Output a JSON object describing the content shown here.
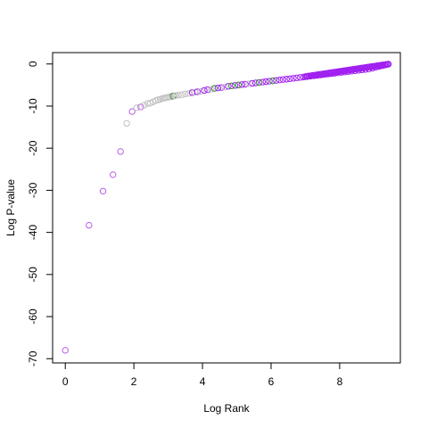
{
  "chart_data": {
    "type": "scatter",
    "title": "",
    "xlabel": "Log Rank",
    "ylabel": "Log P-value",
    "xlim": [
      -0.37,
      9.77
    ],
    "ylim": [
      -71.0,
      2.7
    ],
    "grid": false,
    "legend": "none",
    "x_ticks": [
      0,
      2,
      4,
      6,
      8
    ],
    "x_tick_labels": [
      "0",
      "2",
      "4",
      "6",
      "8"
    ],
    "y_ticks": [
      0,
      -10,
      -20,
      -30,
      -40,
      -50,
      -60,
      -70
    ],
    "y_tick_labels": [
      "0",
      "-10",
      "-20",
      "-30",
      "-40",
      "-50",
      "-60",
      "-70"
    ],
    "marker": "open-circle",
    "colors": {
      "purple": "#a020f0",
      "purple_light": "#b95ee8",
      "gray": "#c0c0c0",
      "green": "#2e8b2e",
      "axis": "#000000"
    },
    "points": [
      {
        "x": 0.0,
        "y": -68.0,
        "color": "purple_light"
      },
      {
        "x": 0.69,
        "y": -38.3,
        "color": "purple_light"
      },
      {
        "x": 1.1,
        "y": -30.2,
        "color": "purple_light"
      },
      {
        "x": 1.39,
        "y": -26.3,
        "color": "purple_light"
      },
      {
        "x": 1.61,
        "y": -20.8,
        "color": "purple_light"
      },
      {
        "x": 1.79,
        "y": -14.1,
        "color": "gray"
      },
      {
        "x": 1.95,
        "y": -11.3,
        "color": "purple_light"
      },
      {
        "x": 2.08,
        "y": -10.4,
        "color": "gray"
      },
      {
        "x": 2.2,
        "y": -10.2,
        "color": "purple_light"
      },
      {
        "x": 2.3,
        "y": -9.8,
        "color": "gray"
      },
      {
        "x": 2.4,
        "y": -9.4,
        "color": "gray"
      },
      {
        "x": 2.48,
        "y": -9.3,
        "color": "gray"
      },
      {
        "x": 2.56,
        "y": -9.0,
        "color": "gray"
      },
      {
        "x": 2.64,
        "y": -8.7,
        "color": "gray"
      },
      {
        "x": 2.71,
        "y": -8.5,
        "color": "gray"
      },
      {
        "x": 2.77,
        "y": -8.4,
        "color": "gray"
      },
      {
        "x": 2.83,
        "y": -8.2,
        "color": "gray"
      },
      {
        "x": 2.89,
        "y": -8.1,
        "color": "gray"
      },
      {
        "x": 2.94,
        "y": -8.0,
        "color": "gray"
      },
      {
        "x": 3.0,
        "y": -7.9,
        "color": "gray"
      },
      {
        "x": 3.04,
        "y": -7.8,
        "color": "gray"
      },
      {
        "x": 3.09,
        "y": -7.8,
        "color": "gray"
      },
      {
        "x": 3.14,
        "y": -7.6,
        "color": "green"
      },
      {
        "x": 3.18,
        "y": -7.6,
        "color": "gray"
      },
      {
        "x": 3.22,
        "y": -7.5,
        "color": "gray"
      },
      {
        "x": 3.3,
        "y": -7.4,
        "color": "gray"
      },
      {
        "x": 3.4,
        "y": -7.3,
        "color": "gray"
      },
      {
        "x": 3.5,
        "y": -7.1,
        "color": "gray"
      },
      {
        "x": 3.6,
        "y": -7.0,
        "color": "gray"
      },
      {
        "x": 3.7,
        "y": -6.8,
        "color": "purple"
      },
      {
        "x": 3.78,
        "y": -6.7,
        "color": "gray"
      },
      {
        "x": 3.85,
        "y": -6.6,
        "color": "purple"
      },
      {
        "x": 3.95,
        "y": -6.5,
        "color": "gray"
      },
      {
        "x": 4.05,
        "y": -6.3,
        "color": "purple"
      },
      {
        "x": 4.15,
        "y": -6.1,
        "color": "purple"
      },
      {
        "x": 4.25,
        "y": -6.0,
        "color": "gray"
      },
      {
        "x": 4.35,
        "y": -5.8,
        "color": "green"
      },
      {
        "x": 4.45,
        "y": -5.7,
        "color": "purple"
      },
      {
        "x": 4.55,
        "y": -5.6,
        "color": "purple"
      },
      {
        "x": 4.65,
        "y": -5.5,
        "color": "gray"
      },
      {
        "x": 4.75,
        "y": -5.3,
        "color": "purple"
      },
      {
        "x": 4.85,
        "y": -5.2,
        "color": "green"
      },
      {
        "x": 4.95,
        "y": -5.1,
        "color": "purple"
      },
      {
        "x": 5.05,
        "y": -5.0,
        "color": "green"
      },
      {
        "x": 5.15,
        "y": -4.9,
        "color": "purple"
      },
      {
        "x": 5.25,
        "y": -4.8,
        "color": "purple"
      },
      {
        "x": 5.35,
        "y": -4.7,
        "color": "gray"
      },
      {
        "x": 5.45,
        "y": -4.6,
        "color": "purple"
      },
      {
        "x": 5.55,
        "y": -4.5,
        "color": "purple"
      },
      {
        "x": 5.65,
        "y": -4.4,
        "color": "green"
      },
      {
        "x": 5.75,
        "y": -4.3,
        "color": "purple"
      },
      {
        "x": 5.85,
        "y": -4.2,
        "color": "purple"
      },
      {
        "x": 5.95,
        "y": -4.1,
        "color": "purple"
      },
      {
        "x": 6.05,
        "y": -4.0,
        "color": "green"
      },
      {
        "x": 6.15,
        "y": -3.9,
        "color": "purple"
      },
      {
        "x": 6.25,
        "y": -3.8,
        "color": "purple"
      },
      {
        "x": 6.35,
        "y": -3.7,
        "color": "purple"
      },
      {
        "x": 6.45,
        "y": -3.6,
        "color": "purple"
      },
      {
        "x": 6.55,
        "y": -3.5,
        "color": "purple"
      },
      {
        "x": 6.65,
        "y": -3.4,
        "color": "purple"
      },
      {
        "x": 6.75,
        "y": -3.3,
        "color": "purple"
      },
      {
        "x": 6.85,
        "y": -3.2,
        "color": "purple"
      },
      {
        "x": 6.95,
        "y": -3.1,
        "color": "purple"
      },
      {
        "x": 7.05,
        "y": -3.0,
        "color": "purple"
      },
      {
        "x": 7.15,
        "y": -2.9,
        "color": "purple"
      },
      {
        "x": 7.25,
        "y": -2.8,
        "color": "purple"
      },
      {
        "x": 7.35,
        "y": -2.7,
        "color": "purple"
      },
      {
        "x": 7.45,
        "y": -2.6,
        "color": "purple"
      },
      {
        "x": 7.55,
        "y": -2.5,
        "color": "purple"
      },
      {
        "x": 7.65,
        "y": -2.4,
        "color": "purple"
      },
      {
        "x": 7.75,
        "y": -2.3,
        "color": "purple"
      },
      {
        "x": 7.85,
        "y": -2.2,
        "color": "purple"
      },
      {
        "x": 7.95,
        "y": -2.1,
        "color": "purple"
      },
      {
        "x": 8.05,
        "y": -2.0,
        "color": "purple"
      },
      {
        "x": 8.15,
        "y": -1.9,
        "color": "purple"
      },
      {
        "x": 8.25,
        "y": -1.8,
        "color": "purple"
      },
      {
        "x": 8.35,
        "y": -1.7,
        "color": "purple"
      },
      {
        "x": 8.45,
        "y": -1.6,
        "color": "purple"
      },
      {
        "x": 8.55,
        "y": -1.5,
        "color": "purple"
      },
      {
        "x": 8.65,
        "y": -1.4,
        "color": "purple"
      },
      {
        "x": 8.75,
        "y": -1.3,
        "color": "purple"
      },
      {
        "x": 8.85,
        "y": -1.2,
        "color": "purple"
      },
      {
        "x": 8.95,
        "y": -1.0,
        "color": "purple"
      },
      {
        "x": 9.05,
        "y": -0.8,
        "color": "purple"
      },
      {
        "x": 9.15,
        "y": -0.6,
        "color": "purple"
      },
      {
        "x": 9.25,
        "y": -0.4,
        "color": "purple"
      },
      {
        "x": 9.32,
        "y": -0.25,
        "color": "purple"
      },
      {
        "x": 9.38,
        "y": -0.1,
        "color": "purple"
      },
      {
        "x": 9.42,
        "y": -0.03,
        "color": "purple"
      }
    ]
  }
}
